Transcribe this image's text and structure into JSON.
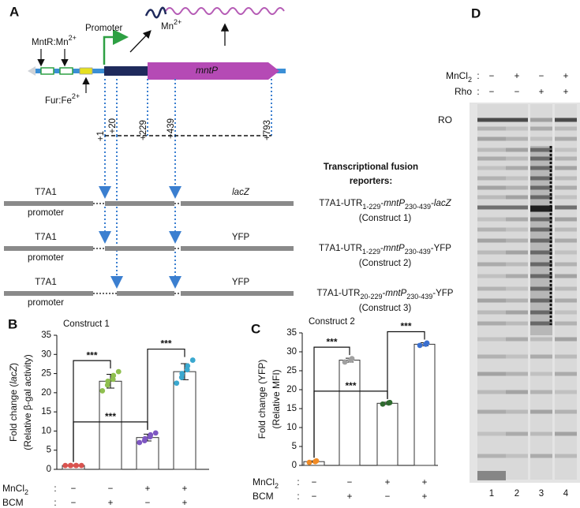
{
  "panel_a": {
    "label": "A",
    "mntr": [
      "MntR:Mn",
      "2+"
    ],
    "promoter": "Promoter",
    "mn": [
      "Mn",
      "2+"
    ],
    "gene": "mntP",
    "fur": [
      "Fur:Fe",
      "2+"
    ],
    "positions": [
      "+1",
      "+20",
      "+229",
      "+439",
      "+793"
    ],
    "reporters_title": [
      "Transcriptional fusion",
      "reporters:"
    ],
    "constructs": [
      {
        "promoter": [
          "T7A1",
          "promoter"
        ],
        "reporter": "lacZ",
        "name_parts": [
          "T7A1-UTR",
          "1-229",
          "-",
          "mntP",
          "230-439",
          "-",
          "lacZ"
        ],
        "name": "(Construct 1)"
      },
      {
        "promoter": [
          "T7A1",
          "promoter"
        ],
        "reporter": "YFP",
        "name_parts": [
          "T7A1-UTR",
          "1-229",
          "-",
          "mntP",
          "230-439",
          "-",
          "YFP"
        ],
        "name": "(Construct 2)"
      },
      {
        "promoter": [
          "T7A1",
          "promoter"
        ],
        "reporter": "YFP",
        "name_parts": [
          "T7A1-UTR",
          "20-229",
          "-",
          "mntP",
          "230-439",
          "-",
          "YFP"
        ],
        "name": "(Construct 3)"
      }
    ]
  },
  "chart_data": [
    {
      "type": "bar",
      "panel": "B",
      "title": "Construct 1",
      "ylabel": [
        [
          "Fold change (",
          "lacZ",
          ")"
        ],
        [
          "(Relative β-gal activity)"
        ]
      ],
      "conditions": [
        {
          "name": [
            "MnCl",
            "2"
          ],
          "separator": ":",
          "signs": [
            "−",
            "−",
            "+",
            "+"
          ]
        },
        {
          "name": [
            "BCM"
          ],
          "separator": ":",
          "signs": [
            "−",
            "+",
            "−",
            "+"
          ]
        }
      ],
      "values": [
        1,
        23,
        8.3,
        25.5
      ],
      "errors": [
        0.1,
        1.8,
        0.9,
        2.1
      ],
      "points": [
        [
          1,
          1,
          1,
          1,
          1,
          1
        ],
        [
          20.5,
          22,
          23,
          23.5,
          24.5,
          25.5
        ],
        [
          7,
          7.5,
          8,
          8.5,
          9,
          9.5
        ],
        [
          22.5,
          24,
          25,
          26,
          27,
          28.5
        ]
      ],
      "point_colors": [
        "#d9534f",
        "#8fbf4f",
        "#7e57c2",
        "#3aa8cf"
      ],
      "color": "#ffffff",
      "ylim": [
        0,
        35
      ],
      "yticks": [
        0,
        5,
        10,
        15,
        20,
        25,
        30,
        35
      ],
      "significance": [
        {
          "from": 0,
          "to": 1,
          "label": "***"
        },
        {
          "from": 0,
          "to": 2,
          "label": "***"
        },
        {
          "from": 2,
          "to": 3,
          "label": "***"
        }
      ]
    },
    {
      "type": "bar",
      "panel": "C",
      "title": "Construct 2",
      "ylabel": [
        [
          "Fold change (YFP)"
        ],
        [
          "(Relative MFI)"
        ]
      ],
      "conditions": [
        {
          "name": [
            "MnCl",
            "2"
          ],
          "separator": ":",
          "signs": [
            "−",
            "−",
            "+",
            "+"
          ]
        },
        {
          "name": [
            "BCM"
          ],
          "separator": ":",
          "signs": [
            "−",
            "+",
            "−",
            "+"
          ]
        }
      ],
      "values": [
        1,
        27.8,
        16.4,
        32
      ],
      "errors": [
        0.2,
        0.5,
        0.3,
        0.4
      ],
      "points": [
        [
          0.8,
          1,
          1.2
        ],
        [
          27.3,
          27.8,
          28.2
        ],
        [
          16.2,
          16.5,
          16.6
        ],
        [
          31.7,
          32,
          32.3
        ]
      ],
      "point_colors": [
        "#f08a24",
        "#a0a0a0",
        "#2f6b2f",
        "#3a6fd0"
      ],
      "color": "#ffffff",
      "ylim": [
        0,
        35
      ],
      "yticks": [
        0,
        5,
        10,
        15,
        20,
        25,
        30,
        35
      ],
      "significance": [
        {
          "from": 0,
          "to": 1,
          "label": "***"
        },
        {
          "from": 0,
          "to": 2,
          "label": "***"
        },
        {
          "from": 2,
          "to": 3,
          "label": "***"
        }
      ]
    }
  ],
  "panel_d": {
    "label": "D",
    "rows": [
      {
        "name": [
          "MnCl",
          "2"
        ],
        "separator": ":",
        "signs": [
          "−",
          "+",
          "−",
          "+"
        ]
      },
      {
        "name": [
          "Rho"
        ],
        "separator": ":",
        "signs": [
          "−",
          "−",
          "+",
          "+"
        ]
      }
    ],
    "ro": "RO",
    "lanes": [
      "1",
      "2",
      "3",
      "4"
    ]
  }
}
